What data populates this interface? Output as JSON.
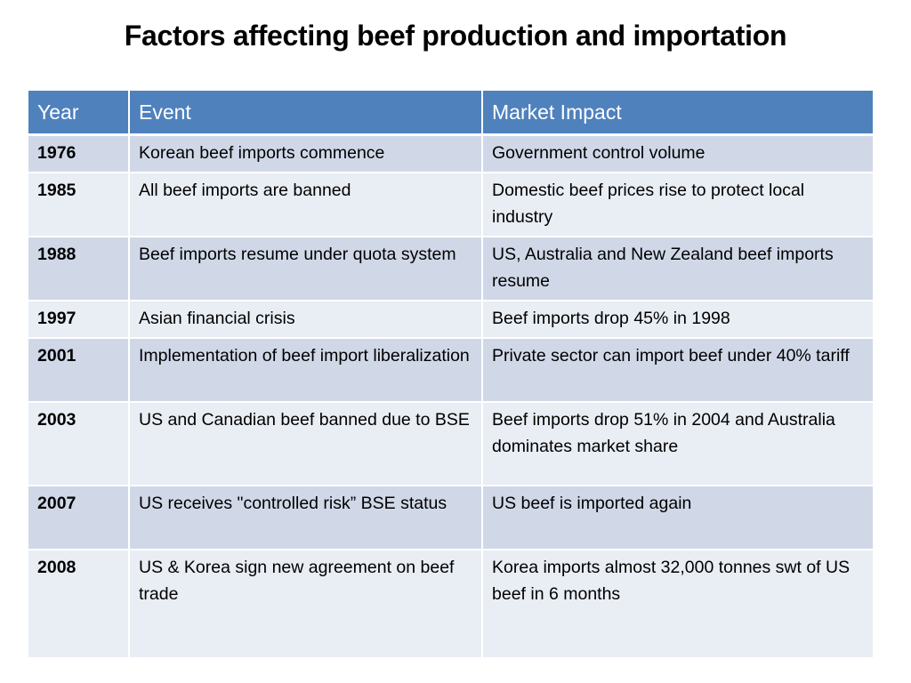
{
  "title": "Factors affecting beef production and importation",
  "table": {
    "headers": {
      "year": "Year",
      "event": "Event",
      "impact": "Market Impact"
    },
    "rows": [
      {
        "year": "1976",
        "event": "Korean beef imports commence",
        "impact": "Government control volume"
      },
      {
        "year": "1985",
        "event": "All beef imports are banned",
        "impact": "Domestic beef prices rise to protect local industry"
      },
      {
        "year": "1988",
        "event": "Beef imports resume under quota system",
        "impact": "US, Australia and New Zealand beef imports resume"
      },
      {
        "year": "1997",
        "event": "Asian financial crisis",
        "impact": "Beef imports drop 45% in 1998"
      },
      {
        "year": "2001",
        "event": "Implementation of beef import liberalization",
        "impact": "Private sector can import beef under 40% tariff"
      },
      {
        "year": "2003",
        "event": "US and Canadian beef banned due to BSE",
        "impact": "Beef imports drop 51% in 2004 and Australia dominates market share"
      },
      {
        "year": "2007",
        "event": "US receives \"controlled risk” BSE status",
        "impact": "US beef is imported again"
      },
      {
        "year": "2008",
        "event": "US & Korea sign new agreement on beef trade",
        "impact": "Korea imports almost 32,000 tonnes swt of US beef in 6 months"
      }
    ]
  },
  "colors": {
    "header_bg": "#4f81bd",
    "row_odd_bg": "#d0d8e8",
    "row_even_bg": "#e9edf4"
  }
}
